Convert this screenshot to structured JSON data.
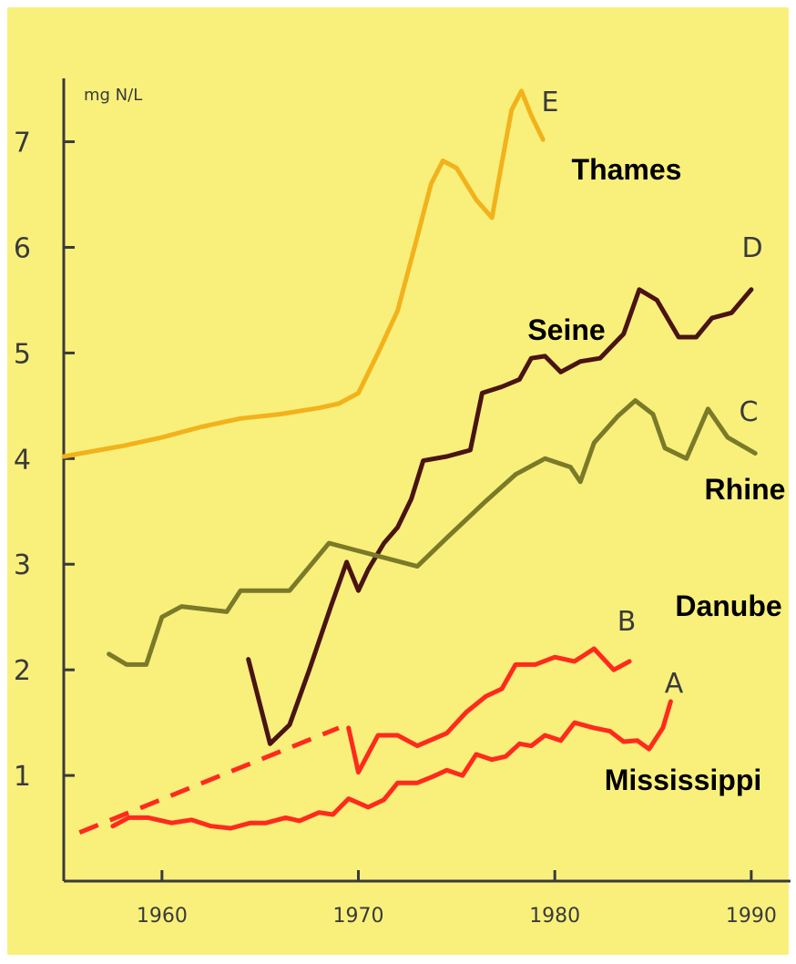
{
  "chart_data": {
    "type": "line",
    "ylabel": "mg N/L",
    "xlim": [
      1955,
      1992
    ],
    "ylim": [
      0,
      7.6
    ],
    "x_ticks": [
      "1960",
      "1970",
      "1980",
      "1990"
    ],
    "y_ticks": [
      "1",
      "2",
      "3",
      "4",
      "5",
      "6",
      "7"
    ],
    "grid": false,
    "series": [
      {
        "name": "Thames",
        "letter": "E",
        "color": "#f2b21b",
        "points": [
          [
            1955,
            4.02
          ],
          [
            1958,
            4.12
          ],
          [
            1960,
            4.2
          ],
          [
            1962,
            4.3
          ],
          [
            1964,
            4.38
          ],
          [
            1966,
            4.42
          ],
          [
            1968,
            4.48
          ],
          [
            1969,
            4.52
          ],
          [
            1970,
            4.62
          ],
          [
            1971,
            5.0
          ],
          [
            1972,
            5.4
          ],
          [
            1973,
            6.1
          ],
          [
            1973.7,
            6.6
          ],
          [
            1974.3,
            6.82
          ],
          [
            1975,
            6.75
          ],
          [
            1976,
            6.45
          ],
          [
            1976.8,
            6.28
          ],
          [
            1977.3,
            6.8
          ],
          [
            1977.8,
            7.3
          ],
          [
            1978.3,
            7.48
          ],
          [
            1978.8,
            7.25
          ],
          [
            1979.4,
            7.02
          ]
        ]
      },
      {
        "name": "Seine",
        "letter": "D",
        "color": "#4a1414",
        "points": [
          [
            1964.4,
            2.1
          ],
          [
            1965.5,
            1.3
          ],
          [
            1966.5,
            1.48
          ],
          [
            1967.5,
            2.0
          ],
          [
            1968.6,
            2.6
          ],
          [
            1969.4,
            3.02
          ],
          [
            1970.0,
            2.75
          ],
          [
            1970.5,
            2.95
          ],
          [
            1971.3,
            3.2
          ],
          [
            1972.0,
            3.35
          ],
          [
            1972.7,
            3.62
          ],
          [
            1973.3,
            3.98
          ],
          [
            1974.5,
            4.02
          ],
          [
            1975.7,
            4.08
          ],
          [
            1976.3,
            4.62
          ],
          [
            1977.3,
            4.68
          ],
          [
            1978.2,
            4.75
          ],
          [
            1978.8,
            4.95
          ],
          [
            1979.5,
            4.97
          ],
          [
            1980.3,
            4.82
          ],
          [
            1981.3,
            4.92
          ],
          [
            1982.3,
            4.95
          ],
          [
            1983.5,
            5.18
          ],
          [
            1984.3,
            5.6
          ],
          [
            1985.2,
            5.5
          ],
          [
            1986.3,
            5.15
          ],
          [
            1987.2,
            5.15
          ],
          [
            1988.0,
            5.33
          ],
          [
            1989.0,
            5.38
          ],
          [
            1990.0,
            5.6
          ]
        ]
      },
      {
        "name": "Rhine",
        "letter": "C",
        "color": "#7a7a28",
        "points": [
          [
            1957.3,
            2.15
          ],
          [
            1958.2,
            2.05
          ],
          [
            1959.2,
            2.05
          ],
          [
            1960,
            2.5
          ],
          [
            1961,
            2.6
          ],
          [
            1963.3,
            2.55
          ],
          [
            1964,
            2.75
          ],
          [
            1966.5,
            2.75
          ],
          [
            1968.5,
            3.2
          ],
          [
            1973,
            2.98
          ],
          [
            1974.5,
            3.25
          ],
          [
            1976.5,
            3.6
          ],
          [
            1978,
            3.85
          ],
          [
            1979.5,
            4.0
          ],
          [
            1980.8,
            3.92
          ],
          [
            1981.3,
            3.78
          ],
          [
            1982,
            4.15
          ],
          [
            1983.2,
            4.4
          ],
          [
            1984.1,
            4.55
          ],
          [
            1985,
            4.42
          ],
          [
            1985.6,
            4.1
          ],
          [
            1986.7,
            4.0
          ],
          [
            1987.8,
            4.47
          ],
          [
            1988.8,
            4.2
          ],
          [
            1990.2,
            4.05
          ]
        ]
      },
      {
        "name": "Danube",
        "letter": "B",
        "color": "#ff2a1c",
        "points": [
          [
            1969.5,
            1.45
          ],
          [
            1970.0,
            1.03
          ],
          [
            1971.0,
            1.38
          ],
          [
            1972.0,
            1.38
          ],
          [
            1973.0,
            1.28
          ],
          [
            1974.5,
            1.4
          ],
          [
            1975.5,
            1.6
          ],
          [
            1976.5,
            1.75
          ],
          [
            1977.3,
            1.82
          ],
          [
            1978.0,
            2.05
          ],
          [
            1979.0,
            2.05
          ],
          [
            1980.0,
            2.12
          ],
          [
            1981.0,
            2.08
          ],
          [
            1982.0,
            2.2
          ],
          [
            1983.0,
            2.0
          ],
          [
            1983.8,
            2.08
          ]
        ]
      },
      {
        "name": "Danube-estimate",
        "letter": "",
        "color": "#ff2a1c",
        "dashed": true,
        "points": [
          [
            1955.8,
            0.46
          ],
          [
            1969.0,
            1.45
          ]
        ]
      },
      {
        "name": "Mississippi",
        "letter": "A",
        "color": "#ff2a1c",
        "points": [
          [
            1957.5,
            0.52
          ],
          [
            1958.3,
            0.6
          ],
          [
            1959.3,
            0.6
          ],
          [
            1960.5,
            0.55
          ],
          [
            1961.5,
            0.58
          ],
          [
            1962.5,
            0.52
          ],
          [
            1963.5,
            0.5
          ],
          [
            1964.5,
            0.55
          ],
          [
            1965.3,
            0.55
          ],
          [
            1966.3,
            0.6
          ],
          [
            1967.0,
            0.57
          ],
          [
            1968.0,
            0.65
          ],
          [
            1968.7,
            0.63
          ],
          [
            1969.5,
            0.78
          ],
          [
            1970.5,
            0.7
          ],
          [
            1971.3,
            0.77
          ],
          [
            1972.0,
            0.93
          ],
          [
            1973.0,
            0.93
          ],
          [
            1973.8,
            0.99
          ],
          [
            1974.5,
            1.05
          ],
          [
            1975.3,
            1.0
          ],
          [
            1976.0,
            1.2
          ],
          [
            1976.8,
            1.15
          ],
          [
            1977.5,
            1.18
          ],
          [
            1978.2,
            1.3
          ],
          [
            1978.8,
            1.28
          ],
          [
            1979.5,
            1.38
          ],
          [
            1980.3,
            1.33
          ],
          [
            1981.0,
            1.5
          ],
          [
            1982.0,
            1.45
          ],
          [
            1982.8,
            1.42
          ],
          [
            1983.5,
            1.32
          ],
          [
            1984.2,
            1.33
          ],
          [
            1984.8,
            1.25
          ],
          [
            1985.5,
            1.45
          ],
          [
            1985.9,
            1.7
          ]
        ]
      }
    ],
    "river_labels": [
      "Thames",
      "Seine",
      "Rhine",
      "Danube",
      "Mississippi"
    ]
  }
}
